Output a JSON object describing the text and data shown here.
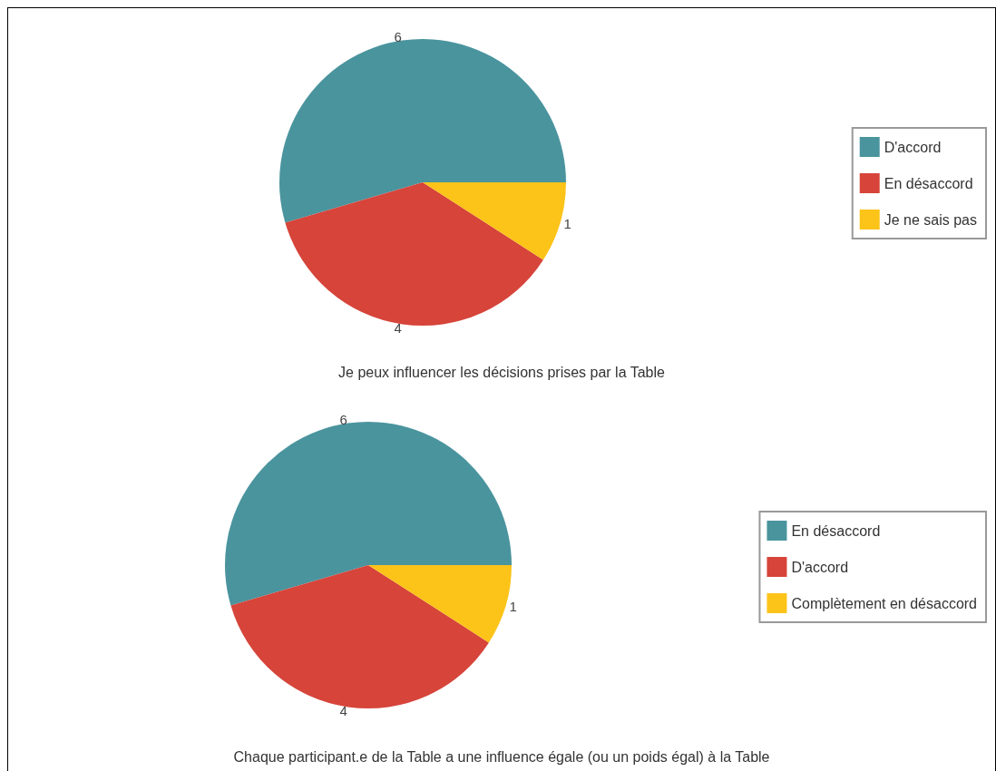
{
  "chart_data": [
    {
      "type": "pie",
      "title": "Je peux influencer les décisions prises par la Table",
      "categories": [
        "D'accord",
        "En désaccord",
        "Je ne sais pas"
      ],
      "values": [
        6,
        4,
        1
      ],
      "colors": [
        "#4a949e",
        "#d6443a",
        "#fcc319"
      ],
      "data_labels": true,
      "legend": "right"
    },
    {
      "type": "pie",
      "title": "Chaque participant.e de la Table a une influence égale (ou un poids égal) à la Table",
      "categories": [
        "En désaccord",
        "D'accord",
        "Complètement en désaccord"
      ],
      "values": [
        6,
        4,
        1
      ],
      "colors": [
        "#4a949e",
        "#d6443a",
        "#fcc319"
      ],
      "data_labels": true,
      "legend": "right"
    }
  ]
}
